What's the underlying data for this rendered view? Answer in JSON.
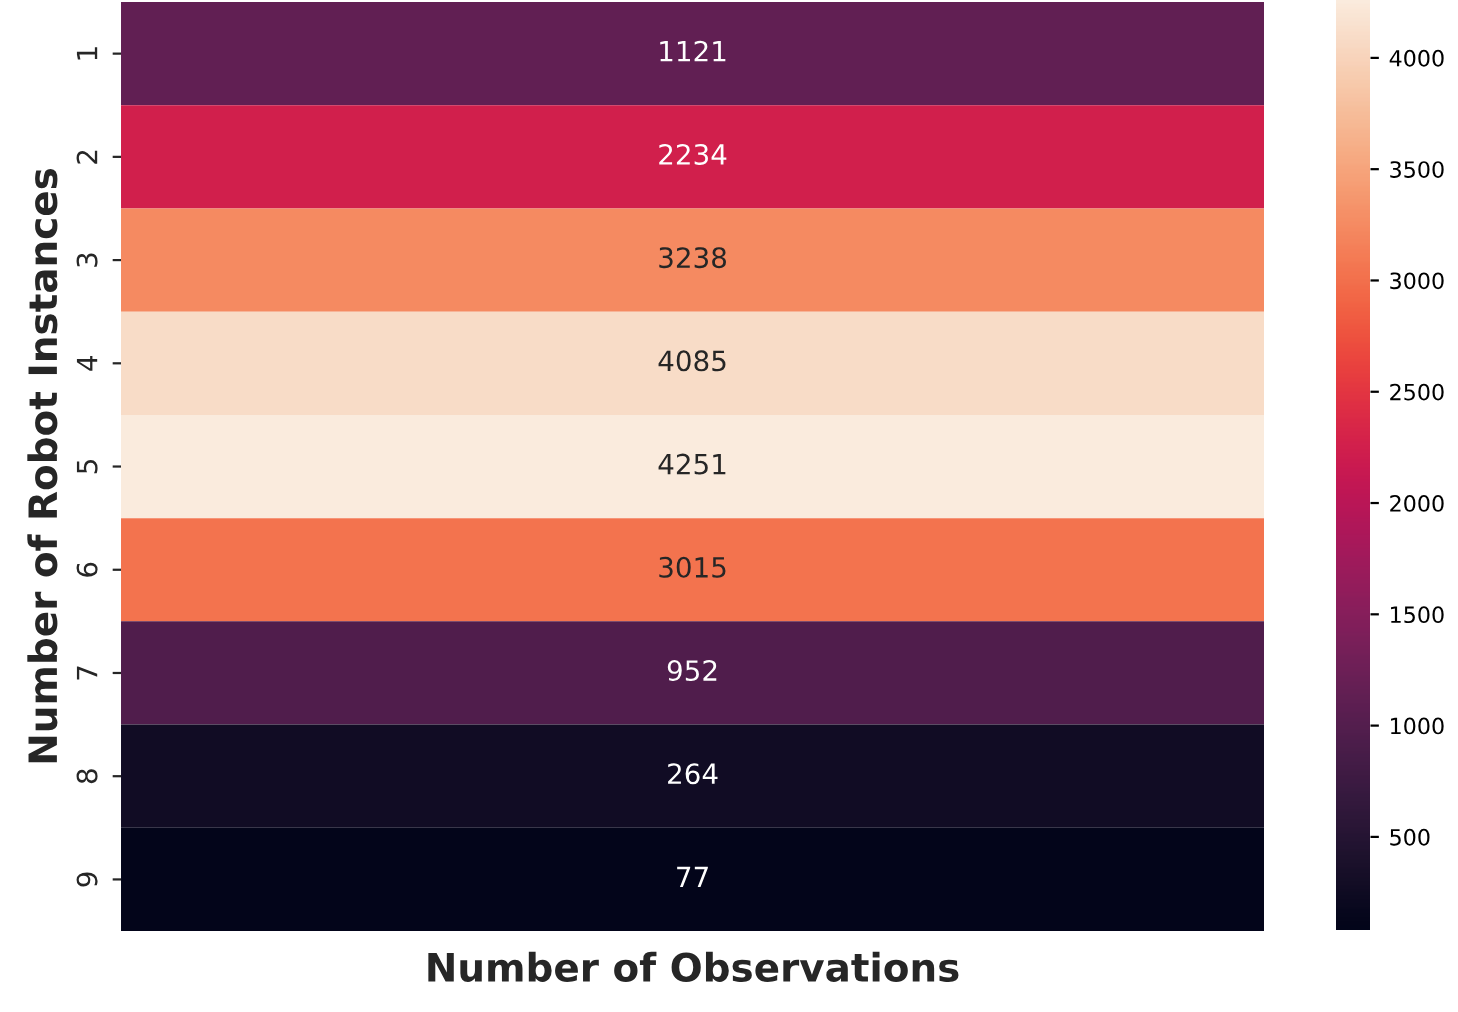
{
  "chart_data": {
    "type": "heatmap",
    "xlabel": "Number of Observations",
    "ylabel": "Number of Robot Instances",
    "categories": [
      null
    ],
    "y_categories": [
      "1",
      "2",
      "3",
      "4",
      "5",
      "6",
      "7",
      "8",
      "9"
    ],
    "cells": [
      [
        1121
      ],
      [
        2234
      ],
      [
        3238
      ],
      [
        4085
      ],
      [
        4251
      ],
      [
        3015
      ],
      [
        952
      ],
      [
        264
      ],
      [
        77
      ]
    ],
    "data_labels": true,
    "clim": [
      77,
      4251
    ],
    "cticks": [
      500,
      1000,
      1500,
      2000,
      2500,
      3000,
      3500,
      4000
    ]
  }
}
